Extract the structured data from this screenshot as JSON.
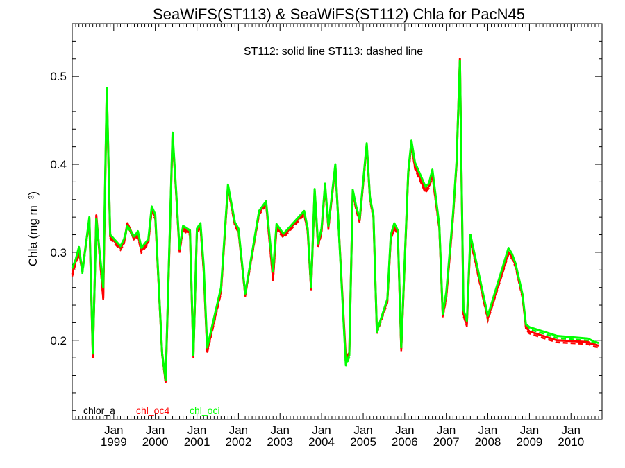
{
  "chart_data": {
    "type": "line",
    "title": "SeaWiFS(ST113) & SeaWiFS(ST112)  Chla for PacN45",
    "annotation": "ST112: solid line   ST113: dashed line",
    "ylabel": "Chla (mg m⁻³)",
    "xlim": [
      "1998-01-01",
      "2010-10-01"
    ],
    "ylim": [
      0.11,
      0.56
    ],
    "yticks": [
      0.2,
      0.3,
      0.4,
      0.5
    ],
    "ytick_labels": [
      "0.2",
      "0.3",
      "0.4",
      "0.5"
    ],
    "xticks": [
      {
        "date": "1999-01-01",
        "labels": [
          "Jan",
          "1999"
        ]
      },
      {
        "date": "2000-01-01",
        "labels": [
          "Jan",
          "2000"
        ]
      },
      {
        "date": "2001-01-01",
        "labels": [
          "Jan",
          "2001"
        ]
      },
      {
        "date": "2002-01-01",
        "labels": [
          "Jan",
          "2002"
        ]
      },
      {
        "date": "2003-01-01",
        "labels": [
          "Jan",
          "2003"
        ]
      },
      {
        "date": "2004-01-01",
        "labels": [
          "Jan",
          "2004"
        ]
      },
      {
        "date": "2005-01-01",
        "labels": [
          "Jan",
          "2005"
        ]
      },
      {
        "date": "2006-01-01",
        "labels": [
          "Jan",
          "2006"
        ]
      },
      {
        "date": "2007-01-01",
        "labels": [
          "Jan",
          "2007"
        ]
      },
      {
        "date": "2008-01-01",
        "labels": [
          "Jan",
          "2008"
        ]
      },
      {
        "date": "2009-01-01",
        "labels": [
          "Jan",
          "2009"
        ]
      },
      {
        "date": "2010-01-01",
        "labels": [
          "Jan",
          "2010"
        ]
      }
    ],
    "legend": [
      {
        "name": "chlor_a",
        "color": "#000000"
      },
      {
        "name": "chl_oc4",
        "color": "#ff0000"
      },
      {
        "name": "chl_oci",
        "color": "#00ff00"
      }
    ],
    "legend_position": "bottom-left",
    "dates": [
      "1998-01-01",
      "1998-02-01",
      "1998-03-01",
      "1998-04-01",
      "1998-06-01",
      "1998-07-01",
      "1998-08-01",
      "1998-10-01",
      "1998-11-01",
      "1998-12-01",
      "1999-03-01",
      "1999-04-01",
      "1999-05-01",
      "1999-07-01",
      "1999-08-01",
      "1999-09-01",
      "1999-11-01",
      "1999-12-01",
      "2000-01-01",
      "2000-03-01",
      "2000-04-01",
      "2000-06-01",
      "2000-07-01",
      "2000-08-01",
      "2000-09-01",
      "2000-11-01",
      "2000-12-01",
      "2001-01-01",
      "2001-02-01",
      "2001-03-01",
      "2001-04-01",
      "2001-08-01",
      "2001-10-01",
      "2001-12-01",
      "2002-01-01",
      "2002-03-01",
      "2002-07-01",
      "2002-09-01",
      "2002-11-01",
      "2002-12-01",
      "2003-02-01",
      "2003-08-01",
      "2003-09-01",
      "2003-10-01",
      "2003-11-01",
      "2003-12-01",
      "2004-01-01",
      "2004-02-01",
      "2004-03-01",
      "2004-05-01",
      "2004-08-01",
      "2004-09-01",
      "2004-10-01",
      "2004-11-01",
      "2004-12-01",
      "2005-02-01",
      "2005-03-01",
      "2005-04-01",
      "2005-05-01",
      "2005-08-01",
      "2005-09-01",
      "2005-10-01",
      "2005-11-01",
      "2005-12-01",
      "2006-02-01",
      "2006-03-01",
      "2006-04-01",
      "2006-07-01",
      "2006-08-01",
      "2006-09-01",
      "2006-11-01",
      "2006-12-01",
      "2007-01-01",
      "2007-03-01",
      "2007-04-01",
      "2007-05-01",
      "2007-06-01",
      "2007-07-01",
      "2007-08-01",
      "2008-01-01",
      "2008-07-01",
      "2008-08-01",
      "2008-09-01",
      "2008-11-01",
      "2008-12-01",
      "2009-01-01",
      "2009-05-01",
      "2009-09-01",
      "2010-06-01",
      "2010-07-01",
      "2010-08-01",
      "2010-09-01"
    ],
    "series": [
      {
        "name": "chl_oc4",
        "line": "solid",
        "color": "#ff0000",
        "values": [
          0.275,
          0.29,
          0.3,
          0.28,
          0.338,
          0.182,
          0.342,
          0.248,
          0.485,
          0.318,
          0.305,
          0.312,
          0.333,
          0.316,
          0.32,
          0.302,
          0.312,
          0.349,
          0.34,
          0.185,
          0.153,
          0.432,
          0.37,
          0.302,
          0.327,
          0.322,
          0.182,
          0.325,
          0.33,
          0.28,
          0.188,
          0.256,
          0.375,
          0.332,
          0.325,
          0.252,
          0.345,
          0.356,
          0.27,
          0.328,
          0.319,
          0.345,
          0.324,
          0.258,
          0.37,
          0.308,
          0.324,
          0.376,
          0.328,
          0.398,
          0.18,
          0.186,
          0.369,
          0.35,
          0.336,
          0.422,
          0.362,
          0.34,
          0.21,
          0.245,
          0.317,
          0.329,
          0.323,
          0.19,
          0.39,
          0.424,
          0.397,
          0.37,
          0.375,
          0.388,
          0.328,
          0.228,
          0.25,
          0.34,
          0.4,
          0.52,
          0.23,
          0.218,
          0.316,
          0.225,
          0.3,
          0.295,
          0.285,
          0.25,
          0.215,
          0.21,
          0.205,
          0.2,
          0.198,
          0.196,
          0.195,
          0.194
        ]
      },
      {
        "name": "chl_oci",
        "line": "solid",
        "color": "#00ff00",
        "values": [
          0.282,
          0.292,
          0.306,
          0.278,
          0.34,
          0.185,
          0.338,
          0.26,
          0.487,
          0.32,
          0.307,
          0.315,
          0.33,
          0.318,
          0.324,
          0.305,
          0.315,
          0.352,
          0.343,
          0.185,
          0.155,
          0.436,
          0.372,
          0.304,
          0.33,
          0.325,
          0.183,
          0.327,
          0.333,
          0.285,
          0.192,
          0.26,
          0.377,
          0.334,
          0.327,
          0.253,
          0.347,
          0.358,
          0.278,
          0.332,
          0.321,
          0.347,
          0.327,
          0.26,
          0.372,
          0.31,
          0.327,
          0.378,
          0.33,
          0.4,
          0.173,
          0.183,
          0.371,
          0.352,
          0.338,
          0.424,
          0.363,
          0.342,
          0.21,
          0.247,
          0.32,
          0.333,
          0.325,
          0.192,
          0.392,
          0.427,
          0.402,
          0.375,
          0.378,
          0.394,
          0.33,
          0.23,
          0.255,
          0.343,
          0.402,
          0.518,
          0.235,
          0.222,
          0.32,
          0.228,
          0.305,
          0.298,
          0.287,
          0.252,
          0.218,
          0.215,
          0.21,
          0.205,
          0.202,
          0.2,
          0.198,
          0.197
        ]
      }
    ]
  }
}
